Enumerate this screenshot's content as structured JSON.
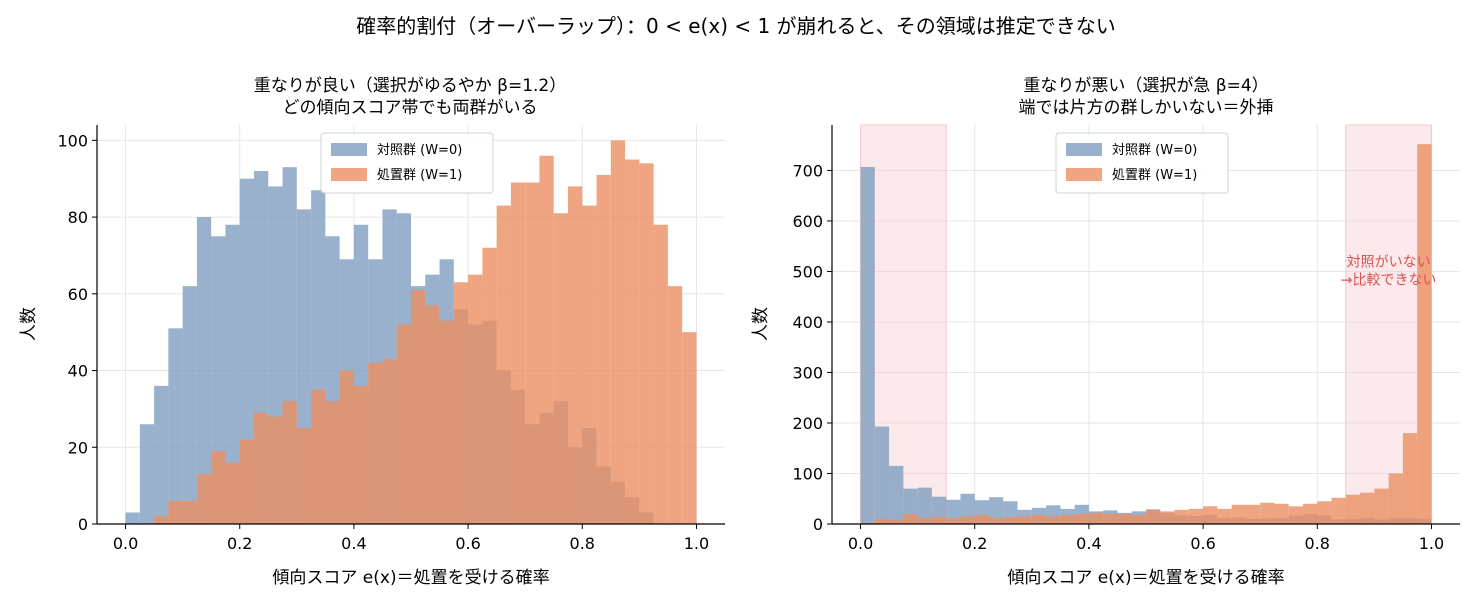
{
  "suptitle": "確率的割付（オーバーラップ）：0 < e(x) < 1 が崩れると、その領域は推定できない",
  "colors": {
    "control": "#7f9dbf",
    "treated": "#eb8f62",
    "shade": "#f4c9cf",
    "annotation": "#e05050"
  },
  "chart_data": [
    {
      "type": "bar",
      "subtype": "overlapping-histogram",
      "title_line1": "重なりが良い（選択がゆるやか β=1.2）",
      "title_line2": "どの傾向スコア帯でも両群がいる",
      "xlabel": "傾向スコア e(x)＝処置を受ける確率",
      "ylabel": "人数",
      "xlim": [
        -0.05,
        1.05
      ],
      "ylim": [
        0,
        104
      ],
      "xticks": [
        0.0,
        0.2,
        0.4,
        0.6,
        0.8,
        1.0
      ],
      "xtick_labels": [
        "0.0",
        "0.2",
        "0.4",
        "0.6",
        "0.8",
        "1.0"
      ],
      "yticks": [
        0,
        20,
        40,
        60,
        80,
        100
      ],
      "ytick_labels": [
        "0",
        "20",
        "40",
        "60",
        "80",
        "100"
      ],
      "grid": true,
      "legend_position": "top-center",
      "bin_width": 0.025,
      "bin_start": 0.0,
      "series": [
        {
          "name": "対照群 (W=0)",
          "color": "#7f9dbf",
          "values": [
            3,
            26,
            36,
            51,
            62,
            80,
            75,
            78,
            90,
            92,
            88,
            93,
            82,
            87,
            75,
            69,
            78,
            69,
            82,
            81,
            62,
            65,
            69,
            56,
            52,
            53,
            40,
            35,
            26,
            29,
            32,
            20,
            25,
            15,
            11,
            7,
            3,
            0,
            0,
            0
          ]
        },
        {
          "name": "処置群 (W=1)",
          "color": "#eb8f62",
          "values": [
            0,
            0,
            2,
            6,
            6,
            13,
            19,
            16,
            22,
            29,
            28,
            32,
            25,
            35,
            32,
            40,
            36,
            42,
            43,
            52,
            61,
            57,
            53,
            63,
            65,
            72,
            83,
            89,
            89,
            96,
            81,
            88,
            83,
            91,
            100,
            95,
            94,
            78,
            62,
            50
          ]
        }
      ]
    },
    {
      "type": "bar",
      "subtype": "overlapping-histogram",
      "title_line1": "重なりが悪い（選択が急 β=4）",
      "title_line2": "端では片方の群しかいない＝外挿",
      "xlabel": "傾向スコア e(x)＝処置を受ける確率",
      "ylabel": "人数",
      "xlim": [
        -0.05,
        1.05
      ],
      "ylim": [
        0,
        790
      ],
      "xticks": [
        0.0,
        0.2,
        0.4,
        0.6,
        0.8,
        1.0
      ],
      "xtick_labels": [
        "0.0",
        "0.2",
        "0.4",
        "0.6",
        "0.8",
        "1.0"
      ],
      "yticks": [
        0,
        100,
        200,
        300,
        400,
        500,
        600,
        700
      ],
      "ytick_labels": [
        "0",
        "100",
        "200",
        "300",
        "400",
        "500",
        "600",
        "700"
      ],
      "grid": true,
      "legend_position": "top-center",
      "bin_width": 0.025,
      "bin_start": 0.0,
      "shaded_regions": [
        [
          0.0,
          0.15
        ],
        [
          0.85,
          1.0
        ]
      ],
      "annotation": {
        "line1": "対照がいない",
        "line2": "→比較できない",
        "x": 0.925,
        "y": 490
      },
      "series": [
        {
          "name": "対照群 (W=0)",
          "color": "#7f9dbf",
          "values": [
            707,
            193,
            115,
            70,
            72,
            54,
            48,
            60,
            47,
            53,
            45,
            28,
            32,
            37,
            30,
            38,
            25,
            27,
            22,
            25,
            29,
            22,
            17,
            16,
            18,
            12,
            13,
            10,
            11,
            12,
            17,
            20,
            17,
            9,
            10,
            12,
            9,
            11,
            12,
            10
          ]
        },
        {
          "name": "処置群 (W=1)",
          "color": "#eb8f62",
          "values": [
            2,
            10,
            8,
            20,
            12,
            14,
            12,
            15,
            18,
            12,
            14,
            15,
            18,
            15,
            18,
            20,
            22,
            20,
            20,
            18,
            28,
            25,
            28,
            30,
            35,
            30,
            38,
            38,
            42,
            40,
            35,
            40,
            45,
            52,
            58,
            62,
            70,
            100,
            180,
            752
          ]
        }
      ]
    }
  ]
}
